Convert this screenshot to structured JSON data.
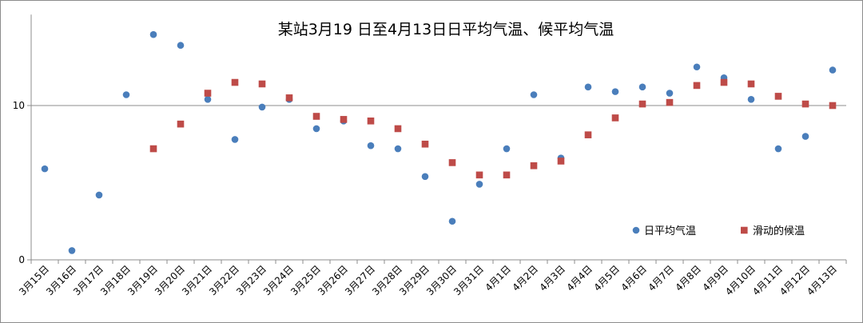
{
  "chart_data": {
    "type": "scatter",
    "title": "某站3月19 日至4月13日日平均气温、候平均气温",
    "xlabel": "",
    "ylabel": "",
    "ylim": [
      0,
      16
    ],
    "yticks": [
      "0",
      "10"
    ],
    "categories": [
      "3月15日",
      "3月16日",
      "3月17日",
      "3月18日",
      "3月19日",
      "3月20日",
      "3月21日",
      "3月22日",
      "3月23日",
      "3月24日",
      "3月25日",
      "3月26日",
      "3月27日",
      "3月28日",
      "3月29日",
      "3月30日",
      "3月31日",
      "4月1日",
      "4月2日",
      "4月3日",
      "4月4日",
      "4月5日",
      "4月6日",
      "4月7日",
      "4月8日",
      "4月9日",
      "4月10日",
      "4月11日",
      "4月12日",
      "4月13日"
    ],
    "series": [
      {
        "name": "日平均气温",
        "marker": "circle",
        "color": "#4a7ebb",
        "values": [
          5.9,
          0.6,
          4.2,
          10.7,
          14.6,
          13.9,
          10.4,
          7.8,
          9.9,
          10.4,
          8.5,
          9.0,
          7.4,
          7.2,
          5.4,
          2.5,
          4.9,
          7.2,
          10.7,
          6.6,
          11.2,
          10.9,
          11.2,
          10.8,
          12.5,
          11.8,
          10.4,
          7.2,
          8.0,
          12.3
        ]
      },
      {
        "name": "滑动的候温",
        "marker": "square",
        "color": "#be4b48",
        "values": [
          null,
          null,
          null,
          null,
          7.2,
          8.8,
          10.8,
          11.5,
          11.4,
          10.5,
          9.3,
          9.1,
          9.0,
          8.5,
          7.5,
          6.3,
          5.5,
          5.5,
          6.1,
          6.4,
          8.1,
          9.2,
          10.1,
          10.2,
          11.3,
          11.5,
          11.4,
          10.6,
          10.1,
          10.0
        ]
      }
    ],
    "legend_position": "bottom-right",
    "grid": false,
    "reference_line": 10
  }
}
